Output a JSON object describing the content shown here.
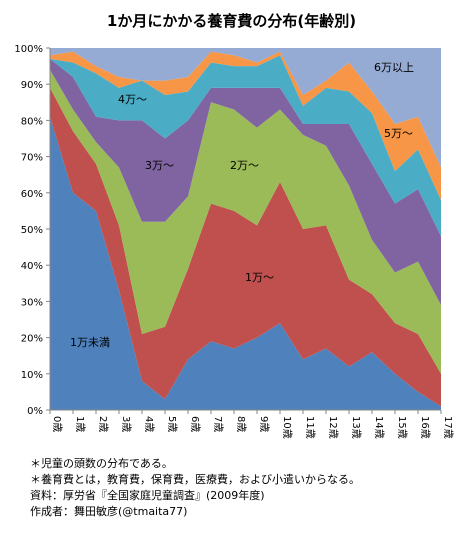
{
  "chart_data": {
    "type": "area",
    "stacked": true,
    "percent": true,
    "title": "1か月にかかる養育費の分布(年齢別)",
    "categories": [
      "0歳",
      "1歳",
      "2歳",
      "3歳",
      "4歳",
      "5歳",
      "6歳",
      "7歳",
      "8歳",
      "9歳",
      "10歳",
      "11歳",
      "12歳",
      "13歳",
      "14歳",
      "15歳",
      "16歳",
      "17歳"
    ],
    "y_ticks": [
      "0%",
      "10%",
      "20%",
      "30%",
      "40%",
      "50%",
      "60%",
      "70%",
      "80%",
      "90%",
      "100%"
    ],
    "ylim": [
      0,
      100
    ],
    "grid": false,
    "series": [
      {
        "name": "1万未満",
        "color": "#4f81bd",
        "values": [
          81,
          60,
          55,
          33,
          8,
          3,
          14,
          19,
          17,
          20,
          24,
          14,
          17,
          12,
          16,
          10,
          5,
          1
        ]
      },
      {
        "name": "1万〜",
        "color": "#c0504d",
        "values": [
          8,
          17,
          13,
          18,
          13,
          20,
          25,
          38,
          38,
          31,
          39,
          36,
          34,
          24,
          16,
          14,
          16,
          9
        ]
      },
      {
        "name": "2万〜",
        "color": "#9bbb59",
        "values": [
          5,
          6,
          6,
          16,
          31,
          29,
          20,
          28,
          28,
          27,
          20,
          26,
          22,
          26,
          15,
          14,
          20,
          19
        ]
      },
      {
        "name": "3万〜",
        "color": "#8064a2",
        "values": [
          3,
          9,
          7,
          13,
          28,
          23,
          21,
          4,
          6,
          11,
          6,
          3,
          6,
          17,
          21,
          19,
          20,
          19
        ]
      },
      {
        "name": "4万〜",
        "color": "#4bacc6",
        "values": [
          0,
          4,
          12,
          9,
          11,
          12,
          8,
          7,
          6,
          6,
          9,
          5,
          10,
          9,
          14,
          9,
          11,
          10
        ]
      },
      {
        "name": "5万〜",
        "color": "#f79646",
        "values": [
          1,
          3,
          2,
          3,
          0,
          4,
          4,
          3,
          3,
          1,
          1,
          3,
          2,
          8,
          6,
          13,
          9,
          9
        ]
      },
      {
        "name": "6万以上",
        "color": "#95abd4",
        "values": [
          2,
          1,
          5,
          8,
          9,
          9,
          8,
          1,
          2,
          4,
          1,
          13,
          9,
          4,
          12,
          21,
          19,
          33
        ]
      }
    ],
    "area_labels": [
      "1万未満",
      "1万〜",
      "2万〜",
      "3万〜",
      "4万〜",
      "5万〜",
      "6万以上"
    ]
  },
  "notes": [
    "＊児童の頭数の分布である。",
    "＊養育費とは，教育費，保育費，医療費，および小遣いからなる。",
    "資料：厚労省『全国家庭児童調査』(2009年度)",
    "作成者：舞田敏彦(@tmaita77)"
  ]
}
